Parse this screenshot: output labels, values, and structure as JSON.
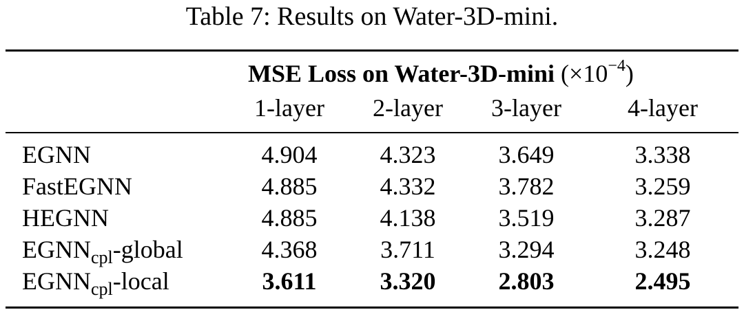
{
  "caption": "Table 7: Results on Water-3D-mini.",
  "header": {
    "group_title": "MSE Loss on Water-3D-mini",
    "group_unit_prefix": "(×10",
    "group_unit_exp": "−4",
    "group_unit_suffix": ")",
    "columns": [
      "1-layer",
      "2-layer",
      "3-layer",
      "4-layer"
    ]
  },
  "rows": [
    {
      "name": "EGNN",
      "sub": "",
      "suffix": "",
      "values": [
        "4.904",
        "4.323",
        "3.649",
        "3.338"
      ]
    },
    {
      "name": "FastEGNN",
      "sub": "",
      "suffix": "",
      "values": [
        "4.885",
        "4.332",
        "3.782",
        "3.259"
      ]
    },
    {
      "name": "HEGNN",
      "sub": "",
      "suffix": "",
      "values": [
        "4.885",
        "4.138",
        "3.519",
        "3.287"
      ]
    },
    {
      "name": "EGNN",
      "sub": "cpl",
      "suffix": "-global",
      "values": [
        "4.368",
        "3.711",
        "3.294",
        "3.248"
      ]
    },
    {
      "name": "EGNN",
      "sub": "cpl",
      "suffix": "-local",
      "values": [
        "3.611",
        "3.320",
        "2.803",
        "2.495"
      ]
    }
  ]
}
